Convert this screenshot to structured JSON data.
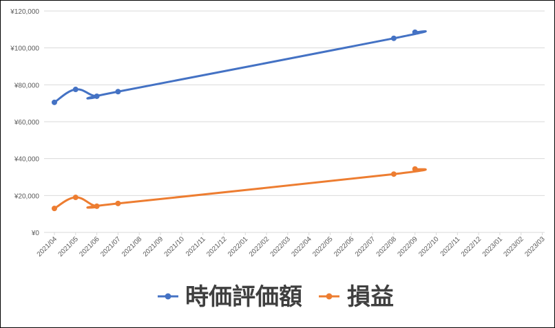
{
  "chart_data": {
    "type": "line",
    "categories": [
      "2021/04",
      "2021/05",
      "2021/06",
      "2021/07",
      "2021/08",
      "2021/09",
      "2021/10",
      "2021/11",
      "2021/12",
      "2022/01",
      "2022/02",
      "2022/03",
      "2022/04",
      "2022/05",
      "2022/06",
      "2022/07",
      "2022/08",
      "2022/09",
      "2022/10",
      "2022/11",
      "2022/12",
      "2023/01",
      "2023/02",
      "2023/03"
    ],
    "yticks": [
      "¥0",
      "¥20,000",
      "¥40,000",
      "¥60,000",
      "¥80,000",
      "¥100,000",
      "¥120,000"
    ],
    "ylim": [
      0,
      120000
    ],
    "grid": true,
    "legend_position": "bottom",
    "series": [
      {
        "name": "時価評価額",
        "color": "#4472c4",
        "x": [
          "2021/04",
          "2021/05",
          "2021/06",
          "2021/07",
          "2022/08",
          "2022/09"
        ],
        "values": [
          70500,
          77500,
          73800,
          76300,
          105200,
          108500
        ]
      },
      {
        "name": "損益",
        "color": "#ed7d31",
        "x": [
          "2021/04",
          "2021/05",
          "2021/06",
          "2021/07",
          "2022/08",
          "2022/09"
        ],
        "values": [
          13000,
          19000,
          14200,
          15700,
          31600,
          34400
        ]
      }
    ],
    "gridline_color": "#d9d9d9",
    "axis_color": "#d9d9d9"
  }
}
